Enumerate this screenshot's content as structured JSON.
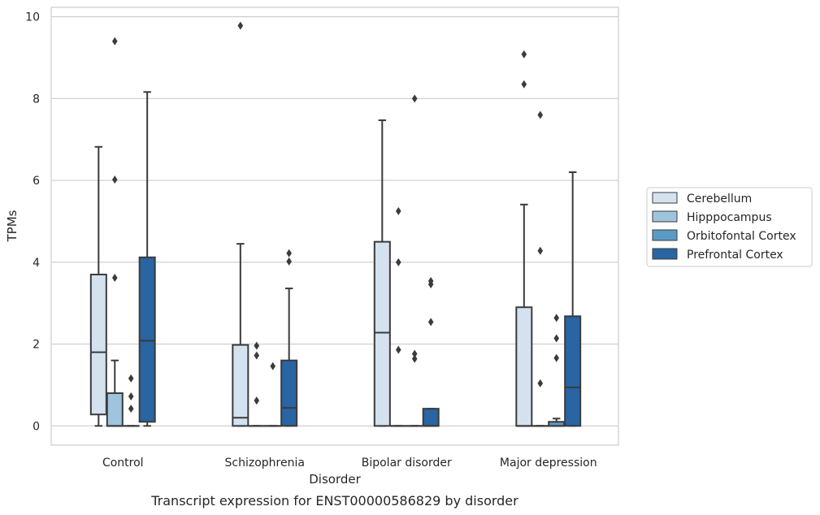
{
  "chart_data": {
    "type": "boxplot",
    "title": "",
    "caption": "Transcript expression for ENST00000586829 by disorder",
    "xlabel": "Disorder",
    "ylabel": "TPMs",
    "ylim": [
      -0.47,
      10.23
    ],
    "yticks": [
      0,
      2,
      4,
      6,
      8,
      10
    ],
    "grid": "horizontal",
    "legend_position": "center-right",
    "categories": [
      "Control",
      "Schizophrenia",
      "Bipolar disorder",
      "Major depression"
    ],
    "series": [
      {
        "name": "Cerebellum",
        "color": "#d4e2f0",
        "boxes": [
          {
            "whislo": 0.0,
            "q1": 0.28,
            "med": 1.8,
            "q3": 3.7,
            "whishi": 6.82,
            "fliers": []
          },
          {
            "whislo": 0.0,
            "q1": 0.0,
            "med": 0.2,
            "q3": 1.98,
            "whishi": 4.45,
            "fliers": [
              9.78
            ]
          },
          {
            "whislo": 0.0,
            "q1": 0.0,
            "med": 2.28,
            "q3": 4.5,
            "whishi": 7.47,
            "fliers": []
          },
          {
            "whislo": 0.0,
            "q1": 0.0,
            "med": 0.0,
            "q3": 2.9,
            "whishi": 5.41,
            "fliers": [
              8.35,
              9.08
            ]
          }
        ]
      },
      {
        "name": "Hipppocampus",
        "color": "#9fc4dd",
        "boxes": [
          {
            "whislo": 0.0,
            "q1": 0.0,
            "med": 0.0,
            "q3": 0.8,
            "whishi": 1.6,
            "fliers": [
              3.62,
              6.02,
              9.4
            ]
          },
          {
            "whislo": 0.0,
            "q1": 0.0,
            "med": 0.0,
            "q3": 0.0,
            "whishi": 0.0,
            "fliers": [
              0.62,
              1.72,
              1.96
            ]
          },
          {
            "whislo": 0.0,
            "q1": 0.0,
            "med": 0.0,
            "q3": 0.0,
            "whishi": 0.0,
            "fliers": [
              1.86,
              4.0,
              5.25
            ]
          },
          {
            "whislo": 0.0,
            "q1": 0.0,
            "med": 0.0,
            "q3": 0.0,
            "whishi": 0.0,
            "fliers": [
              1.04,
              4.28,
              7.6
            ]
          }
        ]
      },
      {
        "name": "Orbitofontal Cortex",
        "color": "#5c9ac6",
        "boxes": [
          {
            "whislo": 0.0,
            "q1": 0.0,
            "med": 0.0,
            "q3": 0.0,
            "whishi": 0.0,
            "fliers": [
              0.42,
              0.72,
              1.16
            ]
          },
          {
            "whislo": 0.0,
            "q1": 0.0,
            "med": 0.0,
            "q3": 0.0,
            "whishi": 0.0,
            "fliers": [
              1.46
            ]
          },
          {
            "whislo": 0.0,
            "q1": 0.0,
            "med": 0.0,
            "q3": 0.0,
            "whishi": 0.0,
            "fliers": [
              1.64,
              1.76,
              8.0
            ]
          },
          {
            "whislo": 0.0,
            "q1": 0.0,
            "med": 0.0,
            "q3": 0.1,
            "whishi": 0.18,
            "fliers": [
              1.66,
              2.14,
              2.64
            ]
          }
        ]
      },
      {
        "name": "Prefrontal Cortex",
        "color": "#2964a3",
        "boxes": [
          {
            "whislo": 0.0,
            "q1": 0.1,
            "med": 2.08,
            "q3": 4.12,
            "whishi": 8.16,
            "fliers": []
          },
          {
            "whislo": 0.0,
            "q1": 0.0,
            "med": 0.44,
            "q3": 1.6,
            "whishi": 3.36,
            "fliers": [
              4.02,
              4.22
            ]
          },
          {
            "whislo": 0.0,
            "q1": 0.0,
            "med": 0.0,
            "q3": 0.42,
            "whishi": 0.42,
            "fliers": [
              2.54,
              3.46,
              3.54
            ]
          },
          {
            "whislo": 0.0,
            "q1": 0.0,
            "med": 0.94,
            "q3": 2.68,
            "whishi": 6.2,
            "fliers": []
          }
        ]
      }
    ]
  }
}
